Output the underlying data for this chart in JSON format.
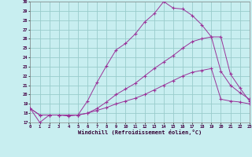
{
  "bg_color": "#c8eef0",
  "grid_color": "#99cccc",
  "line_color": "#993399",
  "xlabel": "Windchill (Refroidissement éolien,°C)",
  "xlim": [
    0,
    23
  ],
  "ylim": [
    17,
    30
  ],
  "xticks": [
    0,
    1,
    2,
    3,
    4,
    5,
    6,
    7,
    8,
    9,
    10,
    11,
    12,
    13,
    14,
    15,
    16,
    17,
    18,
    19,
    20,
    21,
    22,
    23
  ],
  "yticks": [
    17,
    18,
    19,
    20,
    21,
    22,
    23,
    24,
    25,
    26,
    27,
    28,
    29,
    30
  ],
  "line1_x": [
    0,
    1,
    2,
    3,
    4,
    5,
    6,
    7,
    8,
    9,
    10,
    11,
    12,
    13,
    14,
    15,
    16,
    17,
    18,
    19,
    20,
    21,
    22,
    23
  ],
  "line1_y": [
    18.5,
    17.0,
    17.8,
    17.8,
    17.7,
    17.8,
    19.3,
    21.3,
    23.1,
    24.8,
    25.5,
    26.5,
    27.8,
    28.7,
    30.0,
    29.3,
    29.2,
    28.5,
    27.5,
    26.2,
    26.2,
    22.2,
    20.7,
    19.3
  ],
  "line2_x": [
    0,
    1,
    2,
    3,
    4,
    5,
    6,
    7,
    8,
    9,
    10,
    11,
    12,
    13,
    14,
    15,
    16,
    17,
    18,
    19,
    20,
    21,
    22,
    23
  ],
  "line2_y": [
    18.5,
    17.8,
    17.8,
    17.8,
    17.8,
    17.8,
    18.0,
    18.5,
    19.2,
    20.0,
    20.6,
    21.2,
    22.0,
    22.8,
    23.5,
    24.2,
    25.0,
    25.7,
    26.0,
    26.2,
    22.5,
    21.0,
    20.2,
    19.5
  ],
  "line3_x": [
    0,
    1,
    2,
    3,
    4,
    5,
    6,
    7,
    8,
    9,
    10,
    11,
    12,
    13,
    14,
    15,
    16,
    17,
    18,
    19,
    20,
    21,
    22,
    23
  ],
  "line3_y": [
    18.5,
    17.8,
    17.8,
    17.8,
    17.8,
    17.8,
    18.0,
    18.3,
    18.6,
    19.0,
    19.3,
    19.6,
    20.0,
    20.5,
    21.0,
    21.5,
    22.0,
    22.4,
    22.6,
    22.8,
    19.5,
    19.3,
    19.2,
    19.0
  ]
}
